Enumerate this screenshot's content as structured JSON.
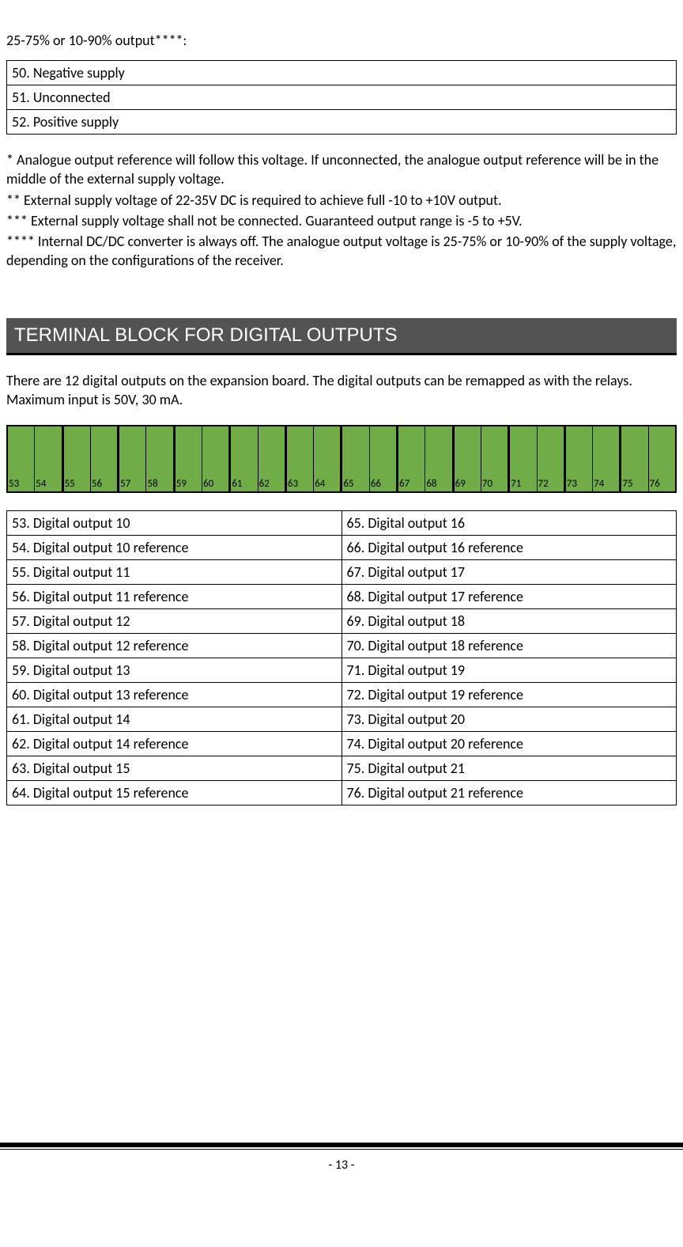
{
  "top_heading": "25-75% or 10-90% output****:",
  "supply_table": {
    "rows": [
      "50. Negative supply",
      "51. Unconnected",
      "52. Positive supply"
    ]
  },
  "notes": [
    "* Analogue output reference will follow this voltage. If unconnected, the analogue output reference will be in the middle of the external supply voltage.",
    "** External supply voltage of 22-35V DC is required to achieve full -10 to +10V output.",
    "*** External supply voltage shall not be connected. Guaranteed output range is -5 to +5V.",
    "**** Internal DC/DC converter is always off. The analogue output voltage is 25-75% or 10-90% of the supply voltage, depending on the configurations of the receiver."
  ],
  "section_title": "TERMINAL BLOCK FOR DIGITAL OUTPUTS",
  "section_intro": "There are 12 digital outputs on the expansion board. The digital outputs can be remapped as with the relays. Maximum input is 50V, 30 mA.",
  "terminal_strip": {
    "bg_color": "#70ad47",
    "border_color": "#000000",
    "pairs": [
      [
        "53",
        "54"
      ],
      [
        "55",
        "56"
      ],
      [
        "57",
        "58"
      ],
      [
        "59",
        "60"
      ],
      [
        "61",
        "62"
      ],
      [
        "63",
        "64"
      ],
      [
        "65",
        "66"
      ],
      [
        "67",
        "68"
      ],
      [
        "69",
        "70"
      ],
      [
        "71",
        "72"
      ],
      [
        "73",
        "74"
      ],
      [
        "75",
        "76"
      ]
    ]
  },
  "digital_table": {
    "rows": [
      [
        "53. Digital output 10",
        "65. Digital output 16"
      ],
      [
        "54. Digital output 10 reference",
        "66. Digital output 16 reference"
      ],
      [
        "55. Digital output 11",
        "67. Digital output 17"
      ],
      [
        "56. Digital output 11 reference",
        "68. Digital output 17 reference"
      ],
      [
        "57. Digital output 12",
        "69. Digital output 18"
      ],
      [
        "58. Digital output 12 reference",
        "70. Digital output 18 reference"
      ],
      [
        "59. Digital output 13",
        "71. Digital output 19"
      ],
      [
        "60. Digital output 13 reference",
        "72. Digital output 19 reference"
      ],
      [
        "61. Digital output 14",
        "73. Digital output 20"
      ],
      [
        "62. Digital output 14 reference",
        "74. Digital output 20 reference"
      ],
      [
        "63. Digital output 15",
        "75. Digital output 21"
      ],
      [
        "64. Digital output 15 reference",
        "76. Digital output 21 reference"
      ]
    ]
  },
  "page_number": "- 13 -"
}
